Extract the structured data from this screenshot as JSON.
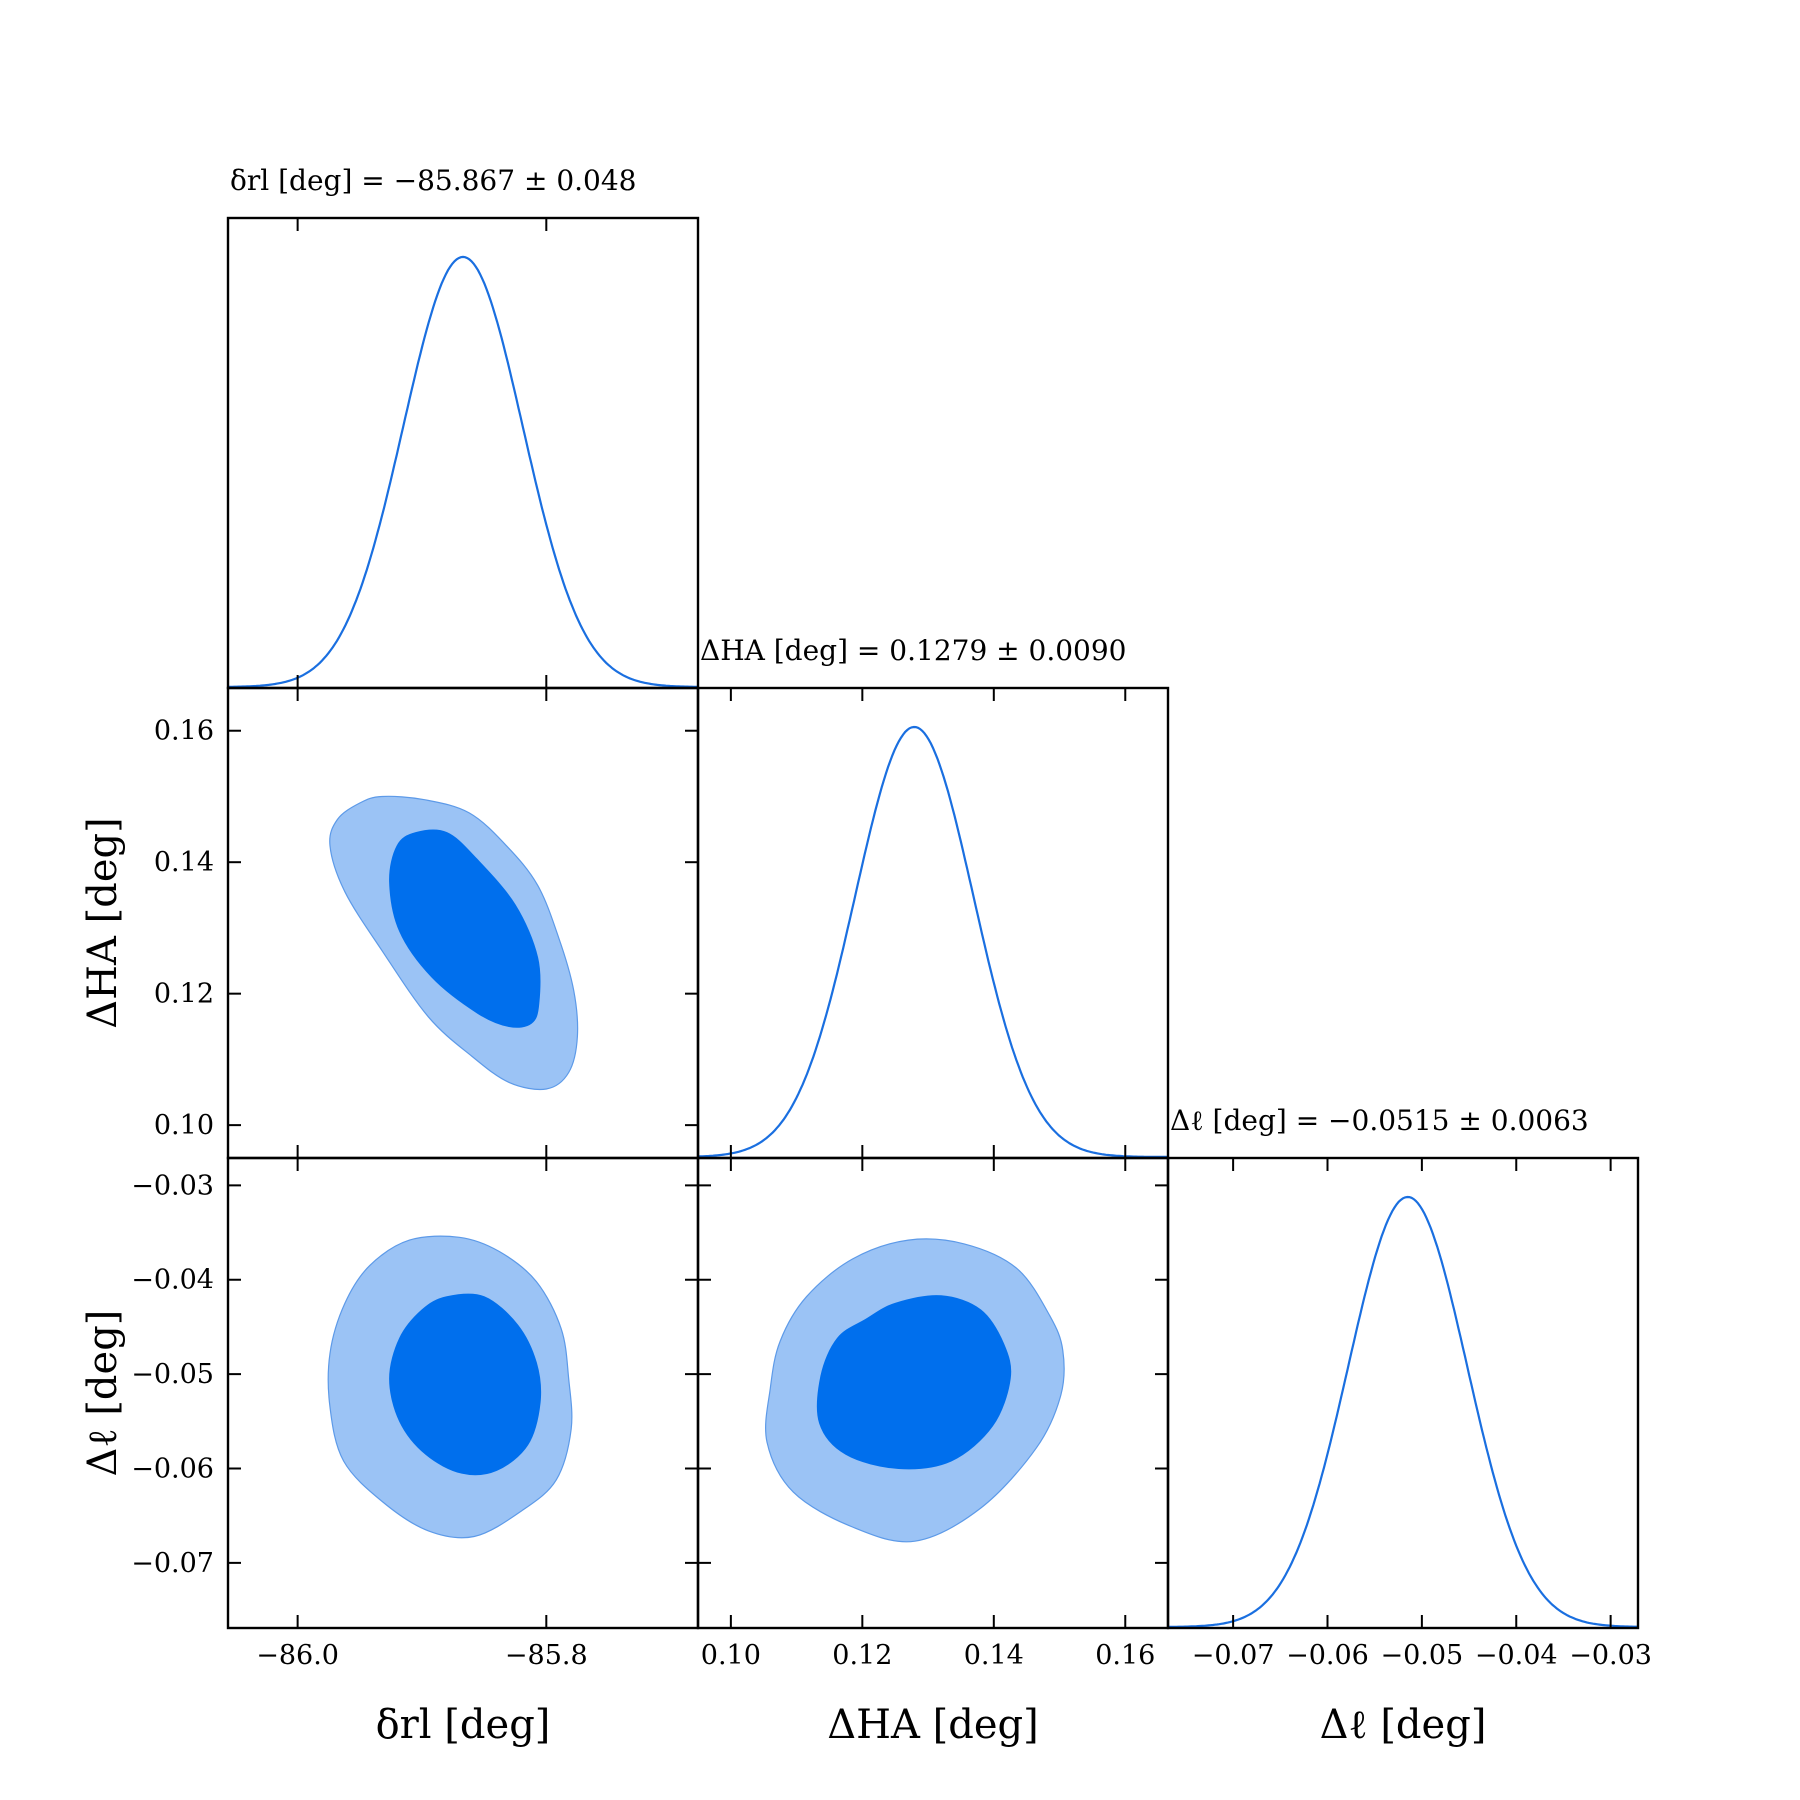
{
  "colors": {
    "line": "#1a6fe0",
    "contour_inner": "#006fed",
    "contour_outer": "#9bc3f5",
    "frame": "#000000"
  },
  "chart_data": {
    "type": "corner",
    "parameters": [
      {
        "key": "drl",
        "axis_label": "δrl [deg]",
        "title": "δrl [deg] = −85.867 ± 0.048",
        "mean": -85.867,
        "sigma": 0.048,
        "range": [
          -86.056,
          -85.678
        ],
        "ticks": [
          -86.0,
          -85.8
        ],
        "tick_labels": [
          "−86.0",
          "−85.8"
        ]
      },
      {
        "key": "dha",
        "axis_label": "ΔHA [deg]",
        "title": "ΔHA [deg] = 0.1279 ± 0.0090",
        "mean": 0.1279,
        "sigma": 0.009,
        "range": [
          0.095,
          0.1665
        ],
        "ticks": [
          0.1,
          0.12,
          0.14,
          0.16
        ],
        "tick_labels": [
          "0.10",
          "0.12",
          "0.14",
          "0.16"
        ]
      },
      {
        "key": "dl",
        "axis_label": "Δℓ [deg]",
        "title": "Δℓ [deg] = −0.0515 ± 0.0063",
        "mean": -0.0515,
        "sigma": 0.0063,
        "range": [
          -0.0769,
          -0.0271
        ],
        "ticks": [
          -0.07,
          -0.06,
          -0.05,
          -0.04,
          -0.03
        ],
        "tick_labels": [
          "−0.07",
          "−0.06",
          "−0.05",
          "−0.04",
          "−0.03"
        ]
      }
    ],
    "marginals_1d": [
      {
        "param": "drl",
        "peak_x": -85.867,
        "sigma": 0.048
      },
      {
        "param": "dha",
        "peak_x": 0.1279,
        "sigma": 0.009
      },
      {
        "param": "dl",
        "peak_x": -0.0515,
        "sigma": 0.0063
      }
    ],
    "contours_2d": [
      {
        "x": "drl",
        "y": "dha",
        "levels": [
          "68%",
          "95%"
        ],
        "inner_68": [
          [
            -85.88,
            0.1445
          ],
          [
            -85.856,
            0.1405
          ],
          [
            -85.825,
            0.1335
          ],
          [
            -85.807,
            0.1255
          ],
          [
            -85.806,
            0.1185
          ],
          [
            -85.812,
            0.1155
          ],
          [
            -85.83,
            0.115
          ],
          [
            -85.855,
            0.117
          ],
          [
            -85.892,
            0.1225
          ],
          [
            -85.918,
            0.1295
          ],
          [
            -85.926,
            0.137
          ],
          [
            -85.92,
            0.1425
          ],
          [
            -85.905,
            0.1445
          ]
        ],
        "outer_95": [
          [
            -85.932,
            0.15
          ],
          [
            -85.898,
            0.1495
          ],
          [
            -85.862,
            0.1475
          ],
          [
            -85.832,
            0.1425
          ],
          [
            -85.807,
            0.1365
          ],
          [
            -85.79,
            0.1285
          ],
          [
            -85.778,
            0.1205
          ],
          [
            -85.775,
            0.1135
          ],
          [
            -85.782,
            0.108
          ],
          [
            -85.8,
            0.1055
          ],
          [
            -85.83,
            0.1065
          ],
          [
            -85.86,
            0.1105
          ],
          [
            -85.895,
            0.1165
          ],
          [
            -85.932,
            0.1265
          ],
          [
            -85.962,
            0.1355
          ],
          [
            -85.974,
            0.1425
          ],
          [
            -85.968,
            0.1465
          ],
          [
            -85.95,
            0.149
          ]
        ]
      },
      {
        "x": "drl",
        "y": "dl",
        "levels": [
          "68%",
          "95%"
        ],
        "inner_68": [
          [
            -85.88,
            -0.0418
          ],
          [
            -85.85,
            -0.0418
          ],
          [
            -85.823,
            -0.0448
          ],
          [
            -85.808,
            -0.0488
          ],
          [
            -85.805,
            -0.053
          ],
          [
            -85.815,
            -0.0575
          ],
          [
            -85.84,
            -0.0602
          ],
          [
            -85.868,
            -0.0605
          ],
          [
            -85.897,
            -0.0585
          ],
          [
            -85.918,
            -0.055
          ],
          [
            -85.926,
            -0.0505
          ],
          [
            -85.918,
            -0.0462
          ],
          [
            -85.9,
            -0.0432
          ]
        ],
        "outer_95": [
          [
            -85.91,
            -0.0358
          ],
          [
            -85.87,
            -0.0355
          ],
          [
            -85.838,
            -0.037
          ],
          [
            -85.808,
            -0.0402
          ],
          [
            -85.788,
            -0.0452
          ],
          [
            -85.782,
            -0.0505
          ],
          [
            -85.78,
            -0.0558
          ],
          [
            -85.792,
            -0.0612
          ],
          [
            -85.82,
            -0.0645
          ],
          [
            -85.858,
            -0.0672
          ],
          [
            -85.895,
            -0.0666
          ],
          [
            -85.932,
            -0.0635
          ],
          [
            -85.963,
            -0.0592
          ],
          [
            -85.974,
            -0.0535
          ],
          [
            -85.974,
            -0.0478
          ],
          [
            -85.962,
            -0.0425
          ],
          [
            -85.942,
            -0.0385
          ]
        ]
      },
      {
        "x": "dha",
        "y": "dl",
        "levels": [
          "68%",
          "95%"
        ],
        "inner_68": [
          [
            0.125,
            -0.0425
          ],
          [
            0.132,
            -0.0417
          ],
          [
            0.138,
            -0.0432
          ],
          [
            0.1415,
            -0.0468
          ],
          [
            0.1425,
            -0.0505
          ],
          [
            0.1398,
            -0.0555
          ],
          [
            0.1335,
            -0.0592
          ],
          [
            0.1255,
            -0.06
          ],
          [
            0.1175,
            -0.0585
          ],
          [
            0.1135,
            -0.0552
          ],
          [
            0.1137,
            -0.0502
          ],
          [
            0.1162,
            -0.0462
          ],
          [
            0.1205,
            -0.0442
          ]
        ],
        "outer_95": [
          [
            0.127,
            -0.0358
          ],
          [
            0.1355,
            -0.0362
          ],
          [
            0.1435,
            -0.0388
          ],
          [
            0.1485,
            -0.0438
          ],
          [
            0.1505,
            -0.0475
          ],
          [
            0.1502,
            -0.0522
          ],
          [
            0.1465,
            -0.0578
          ],
          [
            0.138,
            -0.0642
          ],
          [
            0.128,
            -0.0677
          ],
          [
            0.1185,
            -0.0662
          ],
          [
            0.1095,
            -0.0625
          ],
          [
            0.1055,
            -0.0572
          ],
          [
            0.106,
            -0.0515
          ],
          [
            0.1075,
            -0.0465
          ],
          [
            0.1115,
            -0.0418
          ],
          [
            0.1185,
            -0.0378
          ]
        ]
      }
    ],
    "grid": false,
    "legend": "none"
  }
}
